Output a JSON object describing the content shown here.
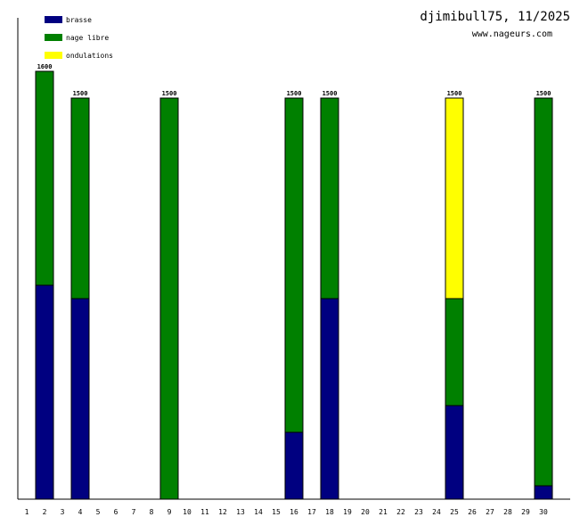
{
  "header": {
    "title": "djimibull75, 11/2025",
    "subtitle": "www.nageurs.com"
  },
  "chart_data": {
    "type": "bar",
    "stacked": true,
    "categories": [
      "1",
      "2",
      "3",
      "4",
      "5",
      "6",
      "7",
      "8",
      "9",
      "10",
      "11",
      "12",
      "13",
      "14",
      "15",
      "16",
      "17",
      "18",
      "19",
      "20",
      "21",
      "22",
      "23",
      "24",
      "25",
      "26",
      "27",
      "28",
      "29",
      "30"
    ],
    "ylim": [
      0,
      1600
    ],
    "legend_position": "top-left",
    "series": [
      {
        "name": "brasse",
        "color": "#000080",
        "values": [
          0,
          800,
          0,
          750,
          0,
          0,
          0,
          0,
          0,
          0,
          0,
          0,
          0,
          0,
          0,
          250,
          0,
          750,
          0,
          0,
          0,
          0,
          0,
          0,
          350,
          0,
          0,
          0,
          0,
          50
        ]
      },
      {
        "name": "nage libre",
        "color": "#008000",
        "values": [
          0,
          800,
          0,
          750,
          0,
          0,
          0,
          0,
          1500,
          0,
          0,
          0,
          0,
          0,
          0,
          1250,
          0,
          750,
          0,
          0,
          0,
          0,
          0,
          0,
          400,
          0,
          0,
          0,
          0,
          1450
        ]
      },
      {
        "name": "ondulations",
        "color": "#ffff00",
        "values": [
          0,
          0,
          0,
          0,
          0,
          0,
          0,
          0,
          0,
          0,
          0,
          0,
          0,
          0,
          0,
          0,
          0,
          0,
          0,
          0,
          0,
          0,
          0,
          0,
          750,
          0,
          0,
          0,
          0,
          0
        ]
      }
    ],
    "totals": [
      0,
      1600,
      0,
      1500,
      0,
      0,
      0,
      0,
      1500,
      0,
      0,
      0,
      0,
      0,
      0,
      1500,
      0,
      1500,
      0,
      0,
      0,
      0,
      0,
      0,
      1500,
      0,
      0,
      0,
      0,
      1500
    ]
  }
}
